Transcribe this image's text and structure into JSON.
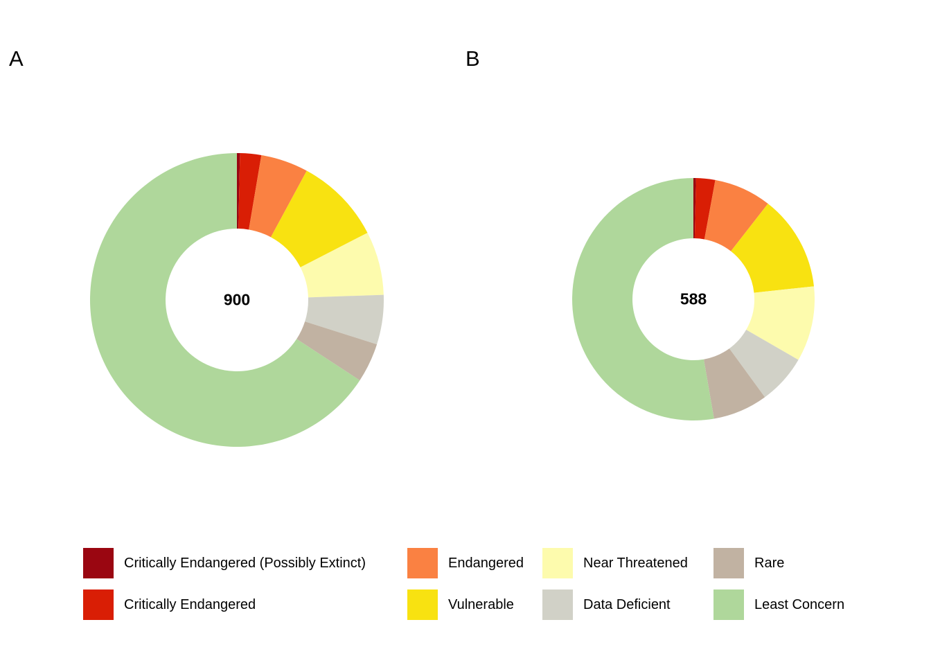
{
  "figure": {
    "background": "#ffffff"
  },
  "chart_data": [
    {
      "type": "pie",
      "subtype": "donut",
      "panel_label": "A",
      "center_label": "900",
      "total": 900,
      "rotation": "clockwise-from-top",
      "categories": [
        "Critically Endangered (Possibly Extinct)",
        "Critically Endangered",
        "Endangered",
        "Vulnerable",
        "Near Threatened",
        "Data Deficient",
        "Rare",
        "Least Concern"
      ],
      "values": [
        3,
        21,
        47,
        86,
        63,
        49,
        39,
        592
      ],
      "colors": [
        "#9a0611",
        "#d91e05",
        "#fa8142",
        "#f8e211",
        "#fdfbad",
        "#d1d1c7",
        "#c1b2a2",
        "#afd79b"
      ]
    },
    {
      "type": "pie",
      "subtype": "donut",
      "panel_label": "B",
      "center_label": "588",
      "total": 588,
      "rotation": "clockwise-from-top",
      "categories": [
        "Critically Endangered (Possibly Extinct)",
        "Critically Endangered",
        "Endangered",
        "Vulnerable",
        "Near Threatened",
        "Data Deficient",
        "Rare",
        "Least Concern"
      ],
      "values": [
        2,
        15,
        45,
        75,
        59,
        39,
        43,
        310
      ],
      "colors": [
        "#9a0611",
        "#d91e05",
        "#fa8142",
        "#f8e211",
        "#fdfbad",
        "#d1d1c7",
        "#c1b2a2",
        "#afd79b"
      ]
    }
  ],
  "legend": {
    "items": [
      {
        "label": "Critically Endangered (Possibly Extinct)",
        "color": "#9a0611"
      },
      {
        "label": "Critically Endangered",
        "color": "#d91e05"
      },
      {
        "label": "Endangered",
        "color": "#fa8142"
      },
      {
        "label": "Vulnerable",
        "color": "#f8e211"
      },
      {
        "label": "Near Threatened",
        "color": "#fdfbad"
      },
      {
        "label": "Data Deficient",
        "color": "#d1d1c7"
      },
      {
        "label": "Rare",
        "color": "#c1b2a2"
      },
      {
        "label": "Least Concern",
        "color": "#afd79b"
      }
    ]
  }
}
